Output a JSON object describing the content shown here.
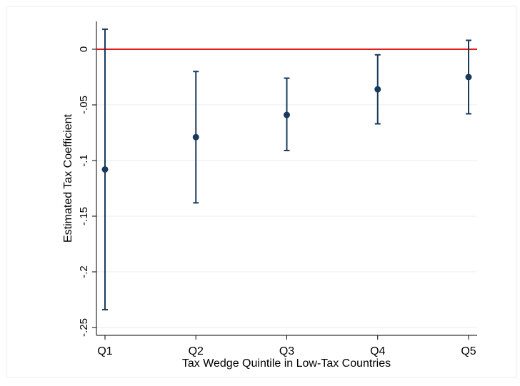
{
  "chart_data": {
    "type": "scatter",
    "subtype": "coefficient plot with confidence intervals",
    "title": "",
    "xlabel": "Tax Wedge Quintile in Low-Tax Countries",
    "ylabel": "Estimated Tax Coefficient",
    "categories": [
      "Q1",
      "Q2",
      "Q3",
      "Q4",
      "Q5"
    ],
    "estimates": [
      -0.108,
      -0.079,
      -0.059,
      -0.036,
      -0.025
    ],
    "ci_low": [
      -0.234,
      -0.138,
      -0.091,
      -0.067,
      -0.058
    ],
    "ci_high": [
      0.018,
      -0.02,
      -0.026,
      -0.005,
      0.008
    ],
    "ylim": [
      -0.25,
      0.025
    ],
    "yticks": [
      0,
      -0.05,
      -0.1,
      -0.15,
      -0.2,
      -0.25
    ],
    "ytick_labels": [
      "0",
      "-.05",
      "-.1",
      "-.15",
      "-.2",
      "-.25"
    ],
    "reference_line": {
      "y": 0,
      "color": "#e31a1c"
    },
    "grid": true,
    "legend": "none",
    "colors": {
      "marker": "#1a3a5c",
      "errorbar": "#1a3a5c",
      "grid": "#e6eef2",
      "axis": "#000000"
    }
  }
}
